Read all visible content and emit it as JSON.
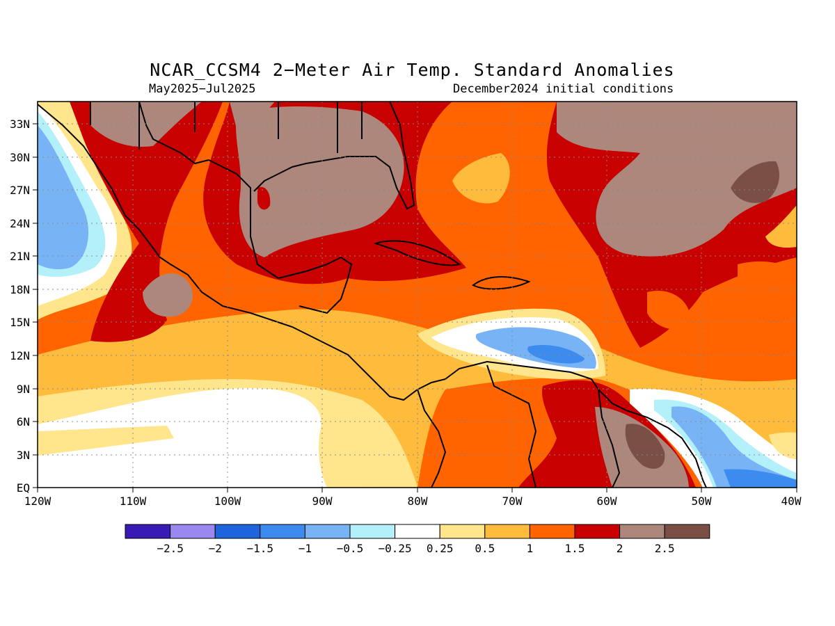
{
  "title": "NCAR_CCSM4 2−Meter Air Temp. Standard Anomalies",
  "subtitle_left": "May2025−Jul2025",
  "subtitle_right": "December2024 initial conditions",
  "lat_labels": [
    "EQ",
    "3N",
    "6N",
    "9N",
    "12N",
    "15N",
    "18N",
    "21N",
    "24N",
    "27N",
    "30N",
    "33N"
  ],
  "lon_labels": [
    "120W",
    "110W",
    "100W",
    "90W",
    "80W",
    "70W",
    "60W",
    "50W",
    "40W"
  ],
  "colorbar": {
    "labels": [
      "−2.5",
      "−2",
      "−1.5",
      "−1",
      "−0.5",
      "−0.25",
      "0.25",
      "0.5",
      "1",
      "1.5",
      "2",
      "2.5"
    ],
    "colors": [
      "#3a1ab4",
      "#9b87f0",
      "#1e64dc",
      "#3c8cf0",
      "#78b4f5",
      "#b4f0fa",
      "#ffffff",
      "#ffe68c",
      "#ffbb3c",
      "#ff6400",
      "#c80000",
      "#ad877c",
      "#7a5046"
    ]
  },
  "chart_data": {
    "type": "contour-map",
    "variable": "2-Meter Air Temp. Standard Anomalies",
    "lon_range": [
      -120,
      -40
    ],
    "lat_range": [
      0,
      35
    ],
    "levels": [
      -2.5,
      -2,
      -1.5,
      -1,
      -0.5,
      -0.25,
      0.25,
      0.5,
      1,
      1.5,
      2,
      2.5
    ]
  }
}
